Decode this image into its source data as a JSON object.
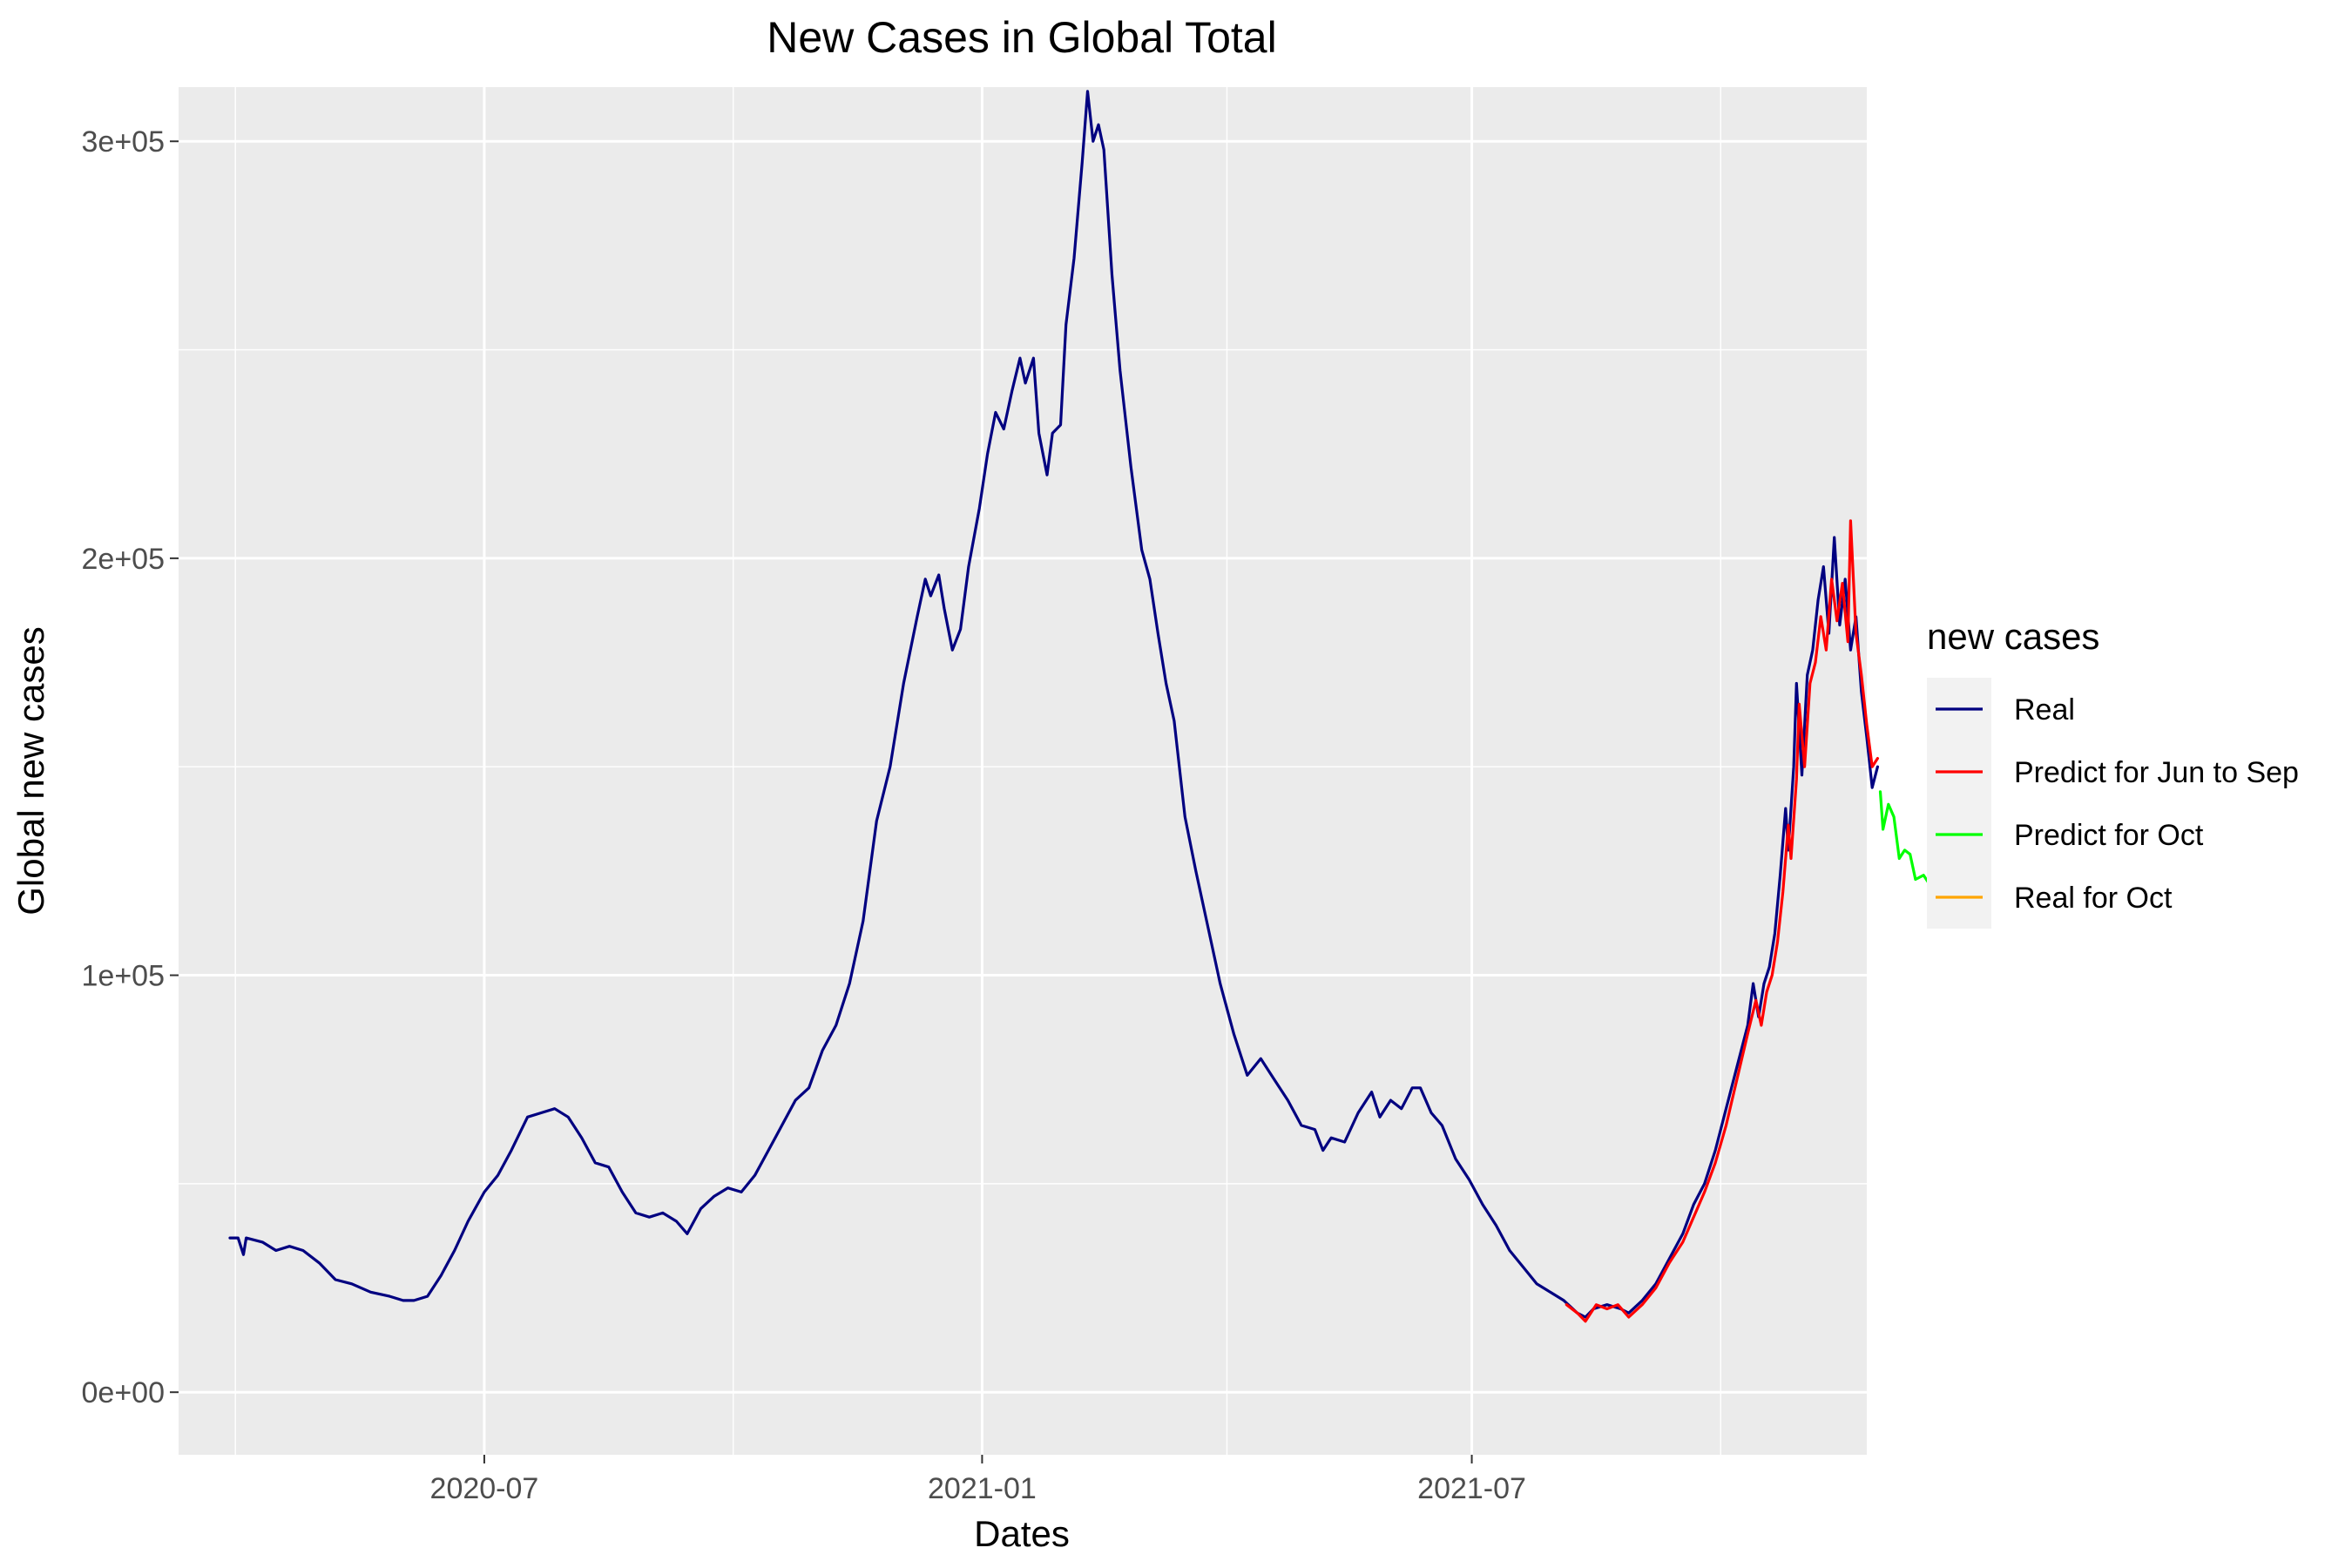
{
  "chart_data": {
    "type": "line",
    "title": "New Cases in Global Total",
    "xlabel": "Dates",
    "ylabel": "Global new cases",
    "x_range": [
      "2020-03-10",
      "2021-11-24"
    ],
    "ylim": [
      -15000,
      313000
    ],
    "x_ticks": [
      {
        "date": "2020-07-01",
        "label": "2020-07"
      },
      {
        "date": "2021-01-01",
        "label": "2021-01"
      },
      {
        "date": "2021-07-01",
        "label": "2021-07"
      }
    ],
    "y_ticks": [
      {
        "value": 0,
        "label": "0e+00"
      },
      {
        "value": 100000,
        "label": "1e+05"
      },
      {
        "value": 200000,
        "label": "2e+05"
      },
      {
        "value": 300000,
        "label": "3e+05"
      }
    ],
    "grid": true,
    "legend": {
      "title": "new cases",
      "position": "right"
    },
    "series": [
      {
        "name": "Real",
        "color": "#000080",
        "points": [
          [
            "2020-03-29",
            37000
          ],
          [
            "2020-04-01",
            37000
          ],
          [
            "2020-04-03",
            33000
          ],
          [
            "2020-04-04",
            37000
          ],
          [
            "2020-04-10",
            36000
          ],
          [
            "2020-04-15",
            34000
          ],
          [
            "2020-04-20",
            35000
          ],
          [
            "2020-04-25",
            34000
          ],
          [
            "2020-05-01",
            31000
          ],
          [
            "2020-05-07",
            27000
          ],
          [
            "2020-05-13",
            26000
          ],
          [
            "2020-05-20",
            24000
          ],
          [
            "2020-05-27",
            23000
          ],
          [
            "2020-06-01",
            22000
          ],
          [
            "2020-06-05",
            22000
          ],
          [
            "2020-06-10",
            23000
          ],
          [
            "2020-06-15",
            28000
          ],
          [
            "2020-06-20",
            34000
          ],
          [
            "2020-06-25",
            41000
          ],
          [
            "2020-07-01",
            48000
          ],
          [
            "2020-07-06",
            52000
          ],
          [
            "2020-07-11",
            58000
          ],
          [
            "2020-07-17",
            66000
          ],
          [
            "2020-07-22",
            67000
          ],
          [
            "2020-07-27",
            68000
          ],
          [
            "2020-08-01",
            66000
          ],
          [
            "2020-08-06",
            61000
          ],
          [
            "2020-08-11",
            55000
          ],
          [
            "2020-08-16",
            54000
          ],
          [
            "2020-08-21",
            48000
          ],
          [
            "2020-08-26",
            43000
          ],
          [
            "2020-08-31",
            42000
          ],
          [
            "2020-09-05",
            43000
          ],
          [
            "2020-09-10",
            41000
          ],
          [
            "2020-09-14",
            38000
          ],
          [
            "2020-09-19",
            44000
          ],
          [
            "2020-09-24",
            47000
          ],
          [
            "2020-09-29",
            49000
          ],
          [
            "2020-10-04",
            48000
          ],
          [
            "2020-10-09",
            52000
          ],
          [
            "2020-10-14",
            58000
          ],
          [
            "2020-10-19",
            64000
          ],
          [
            "2020-10-24",
            70000
          ],
          [
            "2020-10-29",
            73000
          ],
          [
            "2020-11-03",
            82000
          ],
          [
            "2020-11-08",
            88000
          ],
          [
            "2020-11-13",
            98000
          ],
          [
            "2020-11-18",
            113000
          ],
          [
            "2020-11-23",
            137000
          ],
          [
            "2020-11-28",
            150000
          ],
          [
            "2020-12-03",
            170000
          ],
          [
            "2020-12-08",
            186000
          ],
          [
            "2020-12-11",
            195000
          ],
          [
            "2020-12-13",
            191000
          ],
          [
            "2020-12-16",
            196000
          ],
          [
            "2020-12-18",
            188000
          ],
          [
            "2020-12-21",
            178000
          ],
          [
            "2020-12-24",
            183000
          ],
          [
            "2020-12-27",
            198000
          ],
          [
            "2020-12-31",
            212000
          ],
          [
            "2021-01-03",
            225000
          ],
          [
            "2021-01-06",
            235000
          ],
          [
            "2021-01-09",
            231000
          ],
          [
            "2021-01-12",
            240000
          ],
          [
            "2021-01-15",
            248000
          ],
          [
            "2021-01-17",
            242000
          ],
          [
            "2021-01-20",
            248000
          ],
          [
            "2021-01-22",
            230000
          ],
          [
            "2021-01-25",
            220000
          ],
          [
            "2021-01-27",
            230000
          ],
          [
            "2021-01-30",
            232000
          ],
          [
            "2021-02-01",
            256000
          ],
          [
            "2021-02-04",
            272000
          ],
          [
            "2021-02-07",
            295000
          ],
          [
            "2021-02-09",
            312000
          ],
          [
            "2021-02-11",
            300000
          ],
          [
            "2021-02-13",
            304000
          ],
          [
            "2021-02-15",
            298000
          ],
          [
            "2021-02-18",
            268000
          ],
          [
            "2021-02-21",
            245000
          ],
          [
            "2021-02-25",
            222000
          ],
          [
            "2021-03-01",
            202000
          ],
          [
            "2021-03-04",
            195000
          ],
          [
            "2021-03-07",
            182000
          ],
          [
            "2021-03-10",
            170000
          ],
          [
            "2021-03-13",
            161000
          ],
          [
            "2021-03-17",
            138000
          ],
          [
            "2021-03-21",
            125000
          ],
          [
            "2021-03-25",
            113000
          ],
          [
            "2021-03-30",
            98000
          ],
          [
            "2021-04-04",
            86000
          ],
          [
            "2021-04-09",
            76000
          ],
          [
            "2021-04-14",
            80000
          ],
          [
            "2021-04-19",
            75000
          ],
          [
            "2021-04-24",
            70000
          ],
          [
            "2021-04-29",
            64000
          ],
          [
            "2021-05-04",
            63000
          ],
          [
            "2021-05-07",
            58000
          ],
          [
            "2021-05-10",
            61000
          ],
          [
            "2021-05-15",
            60000
          ],
          [
            "2021-05-20",
            67000
          ],
          [
            "2021-05-25",
            72000
          ],
          [
            "2021-05-28",
            66000
          ],
          [
            "2021-06-01",
            70000
          ],
          [
            "2021-06-05",
            68000
          ],
          [
            "2021-06-09",
            73000
          ],
          [
            "2021-06-12",
            73000
          ],
          [
            "2021-06-16",
            67000
          ],
          [
            "2021-06-20",
            64000
          ],
          [
            "2021-06-25",
            56000
          ],
          [
            "2021-06-30",
            51000
          ],
          [
            "2021-07-05",
            45000
          ],
          [
            "2021-07-10",
            40000
          ],
          [
            "2021-07-15",
            34000
          ],
          [
            "2021-07-20",
            30000
          ],
          [
            "2021-07-25",
            26000
          ],
          [
            "2021-07-30",
            24000
          ],
          [
            "2021-08-04",
            22000
          ],
          [
            "2021-08-09",
            19000
          ],
          [
            "2021-08-12",
            18000
          ],
          [
            "2021-08-15",
            20000
          ],
          [
            "2021-08-20",
            21000
          ],
          [
            "2021-08-25",
            20000
          ],
          [
            "2021-08-28",
            19000
          ],
          [
            "2021-09-02",
            22000
          ],
          [
            "2021-09-07",
            26000
          ],
          [
            "2021-09-12",
            32000
          ],
          [
            "2021-09-17",
            38000
          ],
          [
            "2021-09-21",
            45000
          ],
          [
            "2021-09-25",
            50000
          ],
          [
            "2021-09-29",
            58000
          ],
          [
            "2021-10-03",
            68000
          ],
          [
            "2021-10-07",
            78000
          ],
          [
            "2021-10-11",
            88000
          ],
          [
            "2021-10-13",
            98000
          ],
          [
            "2021-10-15",
            90000
          ],
          [
            "2021-10-17",
            98000
          ],
          [
            "2021-10-19",
            102000
          ],
          [
            "2021-10-21",
            110000
          ],
          [
            "2021-10-23",
            124000
          ],
          [
            "2021-10-25",
            140000
          ],
          [
            "2021-10-26",
            130000
          ],
          [
            "2021-10-28",
            150000
          ],
          [
            "2021-10-29",
            170000
          ],
          [
            "2021-10-31",
            148000
          ],
          [
            "2021-11-02",
            172000
          ],
          [
            "2021-11-04",
            178000
          ],
          [
            "2021-11-06",
            190000
          ],
          [
            "2021-11-08",
            198000
          ],
          [
            "2021-11-10",
            182000
          ],
          [
            "2021-11-12",
            205000
          ],
          [
            "2021-11-14",
            184000
          ],
          [
            "2021-11-16",
            195000
          ],
          [
            "2021-11-18",
            178000
          ],
          [
            "2021-11-20",
            186000
          ],
          [
            "2021-11-22",
            168000
          ],
          [
            "2021-11-24",
            157000
          ],
          [
            "2021-11-26",
            145000
          ],
          [
            "2021-11-28",
            150000
          ]
        ]
      },
      {
        "name": "Predict for Jun to Sep",
        "color": "#ff0000",
        "points": [
          [
            "2021-08-05",
            21000
          ],
          [
            "2021-08-09",
            19000
          ],
          [
            "2021-08-12",
            17000
          ],
          [
            "2021-08-16",
            21000
          ],
          [
            "2021-08-20",
            20000
          ],
          [
            "2021-08-24",
            21000
          ],
          [
            "2021-08-28",
            18000
          ],
          [
            "2021-09-02",
            21000
          ],
          [
            "2021-09-07",
            25000
          ],
          [
            "2021-09-12",
            31000
          ],
          [
            "2021-09-17",
            36000
          ],
          [
            "2021-09-21",
            42000
          ],
          [
            "2021-09-25",
            48000
          ],
          [
            "2021-09-29",
            55000
          ],
          [
            "2021-10-03",
            64000
          ],
          [
            "2021-10-07",
            75000
          ],
          [
            "2021-10-11",
            86000
          ],
          [
            "2021-10-14",
            94000
          ],
          [
            "2021-10-16",
            88000
          ],
          [
            "2021-10-18",
            96000
          ],
          [
            "2021-10-20",
            100000
          ],
          [
            "2021-10-22",
            108000
          ],
          [
            "2021-10-24",
            120000
          ],
          [
            "2021-10-26",
            136000
          ],
          [
            "2021-10-27",
            128000
          ],
          [
            "2021-10-29",
            147000
          ],
          [
            "2021-10-30",
            165000
          ],
          [
            "2021-11-01",
            150000
          ],
          [
            "2021-11-03",
            170000
          ],
          [
            "2021-11-05",
            175000
          ],
          [
            "2021-11-07",
            186000
          ],
          [
            "2021-11-09",
            178000
          ],
          [
            "2021-11-11",
            195000
          ],
          [
            "2021-11-13",
            185000
          ],
          [
            "2021-11-15",
            194000
          ],
          [
            "2021-11-17",
            180000
          ],
          [
            "2021-11-18",
            209000
          ],
          [
            "2021-11-20",
            182000
          ],
          [
            "2021-11-22",
            172000
          ],
          [
            "2021-11-24",
            160000
          ],
          [
            "2021-11-26",
            150000
          ],
          [
            "2021-11-28",
            152000
          ]
        ]
      },
      {
        "name": "Predict for Oct",
        "color": "#00ff00",
        "points": [
          [
            "2021-11-29",
            144000
          ],
          [
            "2021-11-30",
            135000
          ],
          [
            "2021-12-02",
            141000
          ],
          [
            "2021-12-04",
            138000
          ],
          [
            "2021-12-06",
            128000
          ],
          [
            "2021-12-08",
            130000
          ],
          [
            "2021-12-10",
            129000
          ],
          [
            "2021-12-12",
            123000
          ],
          [
            "2021-12-15",
            124000
          ],
          [
            "2021-12-18",
            121000
          ],
          [
            "2021-12-21",
            122000
          ],
          [
            "2021-12-24",
            121000
          ]
        ]
      },
      {
        "name": "Real for Oct",
        "color": "#ffa500",
        "points": []
      }
    ]
  }
}
